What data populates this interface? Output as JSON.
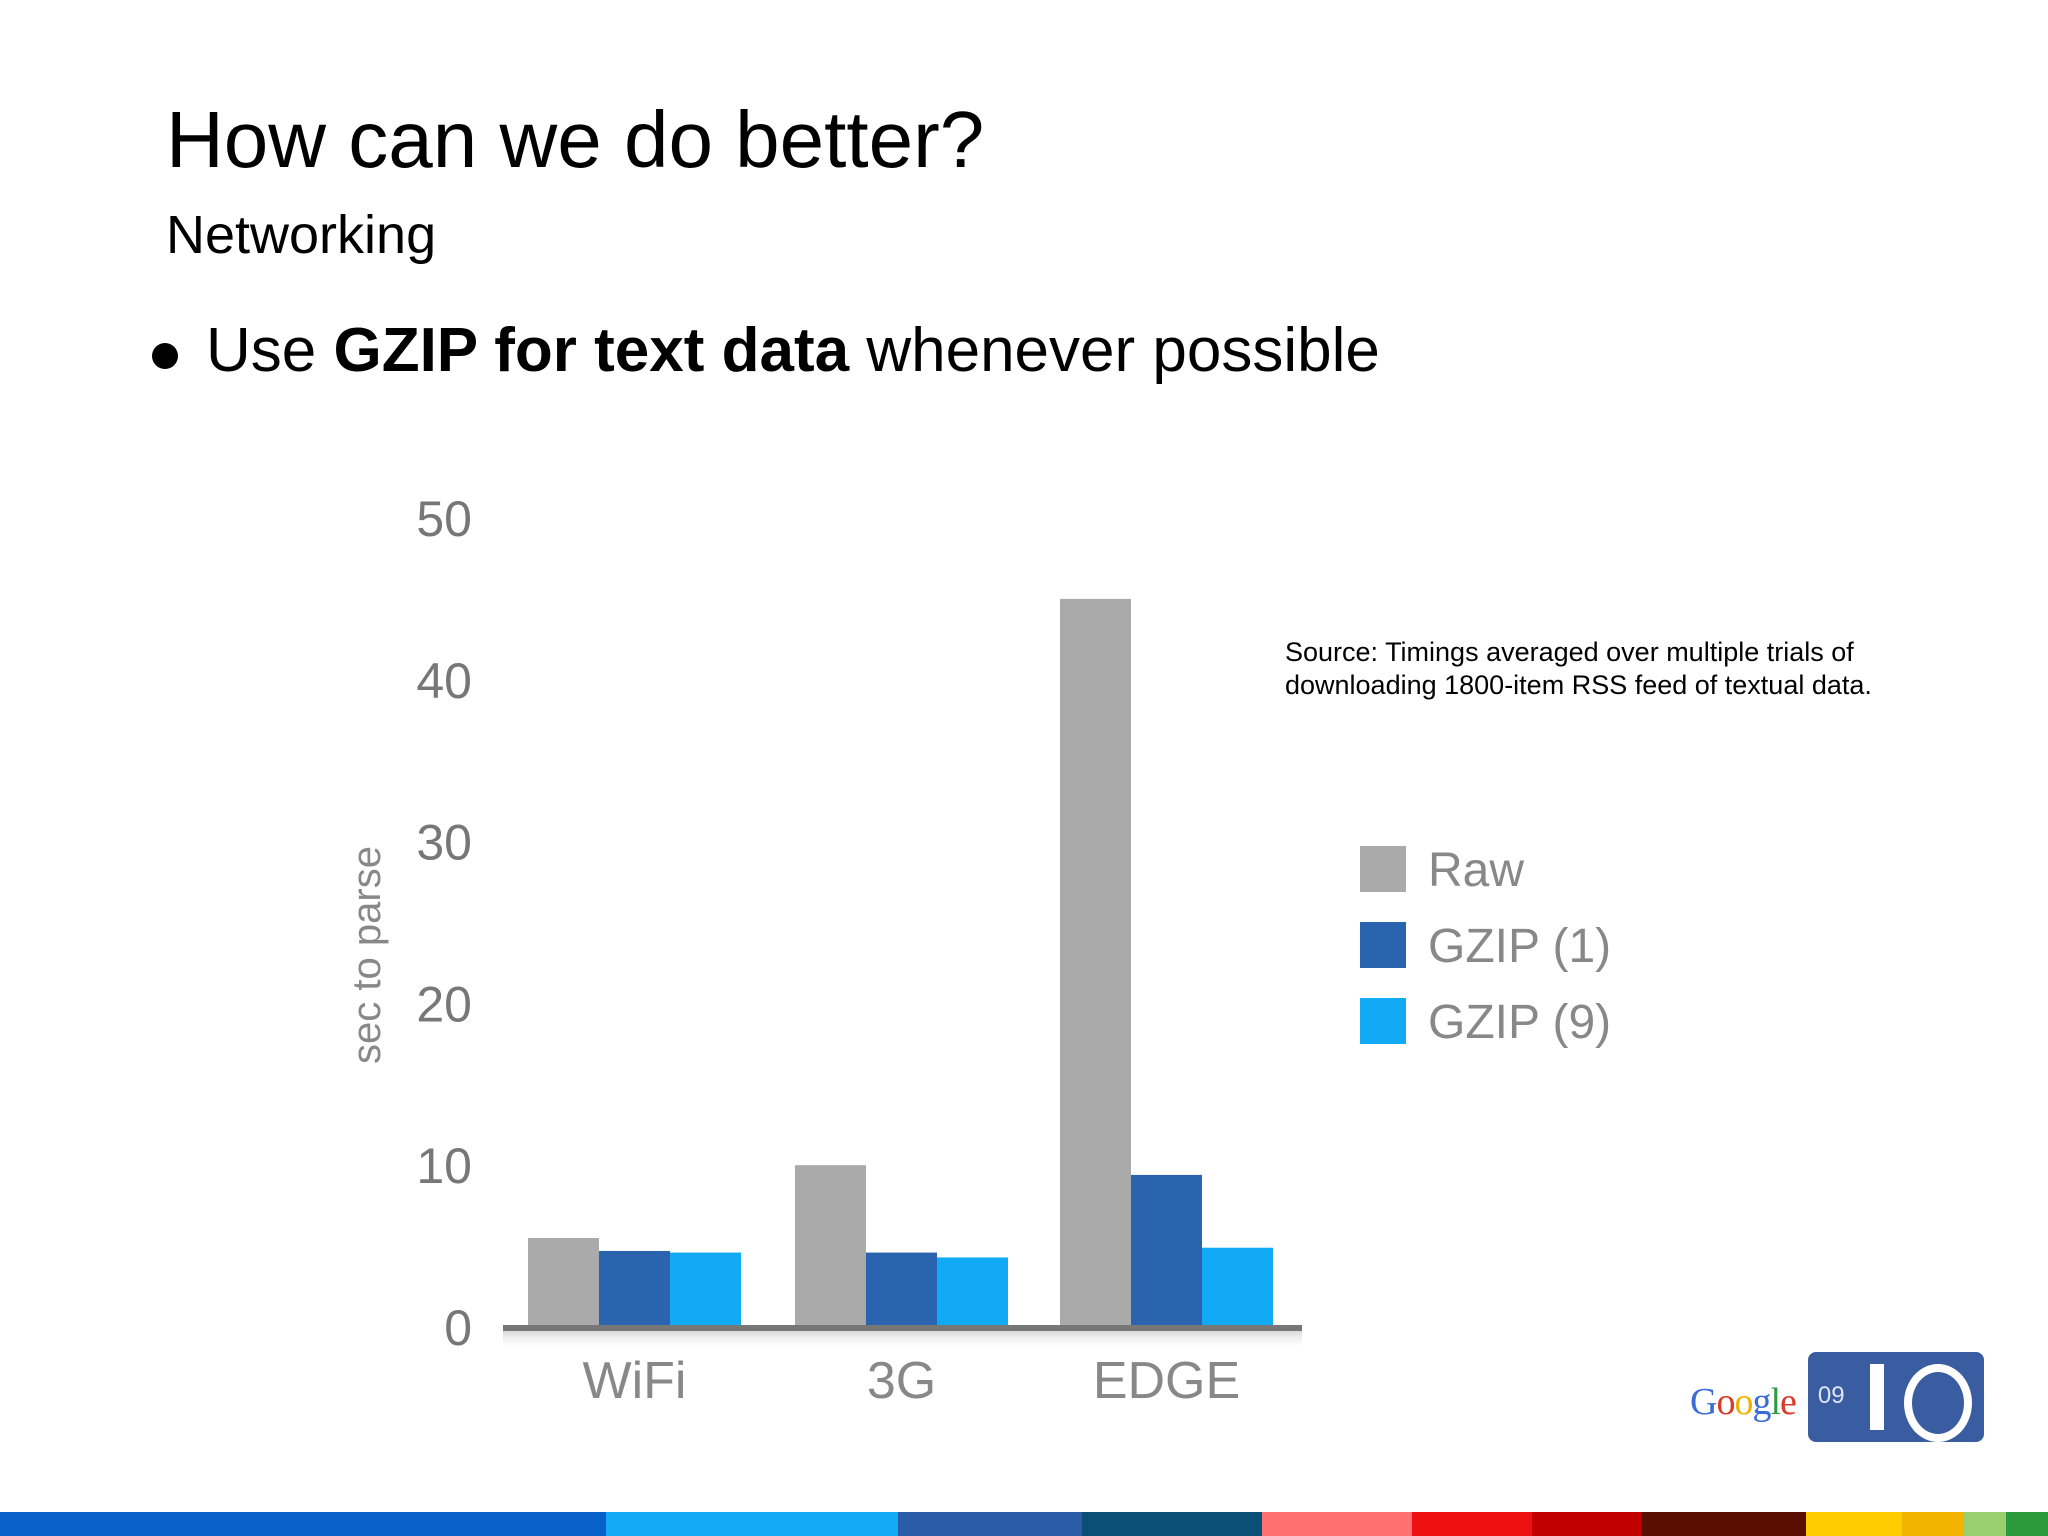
{
  "slide": {
    "title": "How can we do better?",
    "subtitle": "Networking",
    "bullet": {
      "prefix": "Use ",
      "bold": "GZIP for text data",
      "suffix": " whenever possible"
    },
    "source_line1": "Source: Timings averaged over multiple trials of",
    "source_line2": "downloading 1800-item RSS feed of textual data."
  },
  "logo": {
    "google_letters": [
      {
        "ch": "G",
        "color": "#3b6bd6"
      },
      {
        "ch": "o",
        "color": "#d93a2b"
      },
      {
        "ch": "o",
        "color": "#f2b300"
      },
      {
        "ch": "g",
        "color": "#3b6bd6"
      },
      {
        "ch": "l",
        "color": "#2e9a41"
      },
      {
        "ch": "e",
        "color": "#d93a2b"
      }
    ],
    "year": "09"
  },
  "colors": {
    "raw": "#aaaaaa",
    "gzip1": "#2a64ae",
    "gzip9": "#13aaf5",
    "axis": "#777777"
  },
  "footer_colors": [
    "#0a62c8",
    "#0a62c8",
    "#15aaf5",
    "#2a5ca8",
    "#0c4f76",
    "#ff7070",
    "#ee1111",
    "#c00000",
    "#5a0e00",
    "#ffcc00",
    "#f2b400",
    "#98d070",
    "#2c9a3a"
  ],
  "chart_data": {
    "type": "bar",
    "categories": [
      "WiFi",
      "3G",
      "EDGE"
    ],
    "series": [
      {
        "name": "Raw",
        "values": [
          5.5,
          10,
          45
        ]
      },
      {
        "name": "GZIP (1)",
        "values": [
          4.7,
          4.6,
          9.4
        ]
      },
      {
        "name": "GZIP (9)",
        "values": [
          4.6,
          4.3,
          4.9
        ]
      }
    ],
    "yticks": [
      0,
      10,
      20,
      30,
      40,
      50
    ],
    "ylim": [
      0,
      50
    ],
    "ylabel": "sec to parse",
    "xlabel": "",
    "legend_position": "right",
    "grid": false
  }
}
